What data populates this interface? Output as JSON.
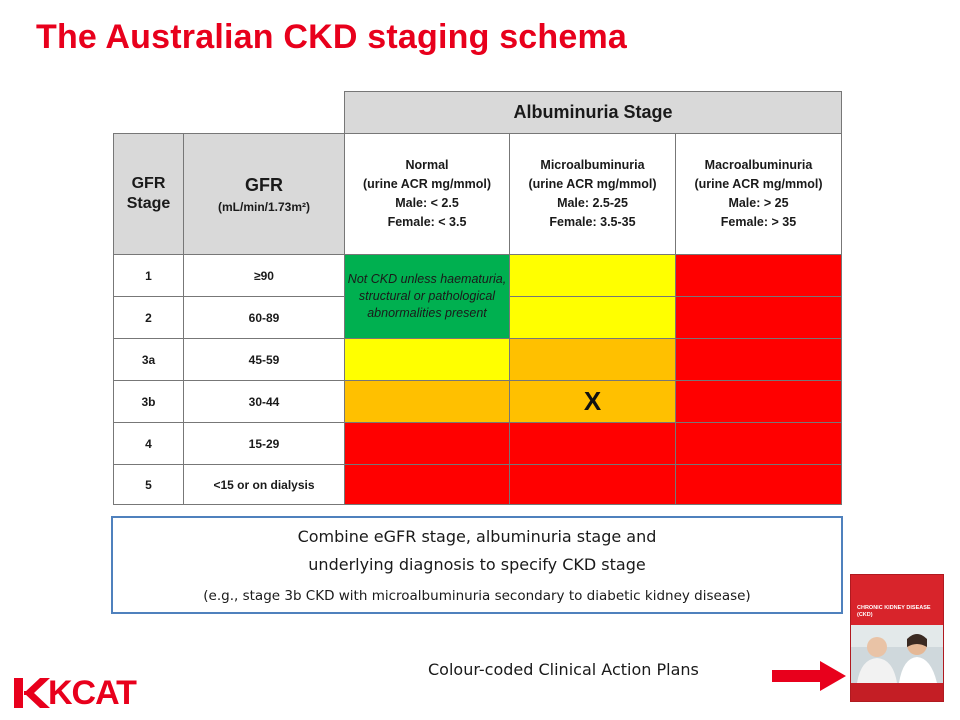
{
  "title": "The Australian CKD staging schema",
  "table": {
    "albuminuria_header": "Albuminuria Stage",
    "gfr_stage_header": [
      "GFR",
      "Stage"
    ],
    "gfr_header": {
      "main": "GFR",
      "unit": "(mL/min/1.73m²)"
    },
    "albuminuria_columns": [
      {
        "lines": [
          "Normal",
          "(urine ACR mg/mmol)",
          "Male: < 2.5",
          "Female: < 3.5"
        ]
      },
      {
        "lines": [
          "Microalbuminuria",
          "(urine ACR mg/mmol)",
          "Male: 2.5-25",
          "Female: 3.5-35"
        ]
      },
      {
        "lines": [
          "Macroalbuminuria",
          "(urine ACR mg/mmol)",
          "Male: > 25",
          "Female: > 35"
        ]
      }
    ],
    "rows": [
      {
        "stage": "1",
        "gfr": "≥90",
        "colors": [
          "green",
          "yellow",
          "red"
        ]
      },
      {
        "stage": "2",
        "gfr": "60-89",
        "colors": [
          "green",
          "yellow",
          "red"
        ]
      },
      {
        "stage": "3a",
        "gfr": "45-59",
        "colors": [
          "yellow",
          "orange",
          "red"
        ]
      },
      {
        "stage": "3b",
        "gfr": "30-44",
        "colors": [
          "orange",
          "orange",
          "red"
        ]
      },
      {
        "stage": "4",
        "gfr": "15-29",
        "colors": [
          "red",
          "red",
          "red"
        ]
      },
      {
        "stage": "5",
        "gfr": "<15 or on dialysis",
        "colors": [
          "red",
          "red",
          "red"
        ]
      }
    ],
    "green_note": "Not CKD unless haematuria, structural or pathological abnormalities present",
    "marker": {
      "text": "X",
      "row": 3,
      "col": 1
    },
    "colors": {
      "green": "#00b050",
      "yellow": "#ffff00",
      "orange": "#ffc000",
      "red": "#ff0000"
    }
  },
  "combine_box": {
    "line1": "Combine eGFR stage, albuminuria stage and",
    "line2": "underlying diagnosis to specify CKD stage",
    "line3": "(e.g., stage 3b CKD with microalbuminuria secondary to diabetic kidney disease)"
  },
  "action_plans_label": "Colour-coded Clinical Action Plans",
  "logo_text": "KCAT",
  "booklet": {
    "title": "CHRONIC KIDNEY DISEASE (CKD)",
    "icon": "booklet-cover-image"
  },
  "brand_color": "#e8001c"
}
